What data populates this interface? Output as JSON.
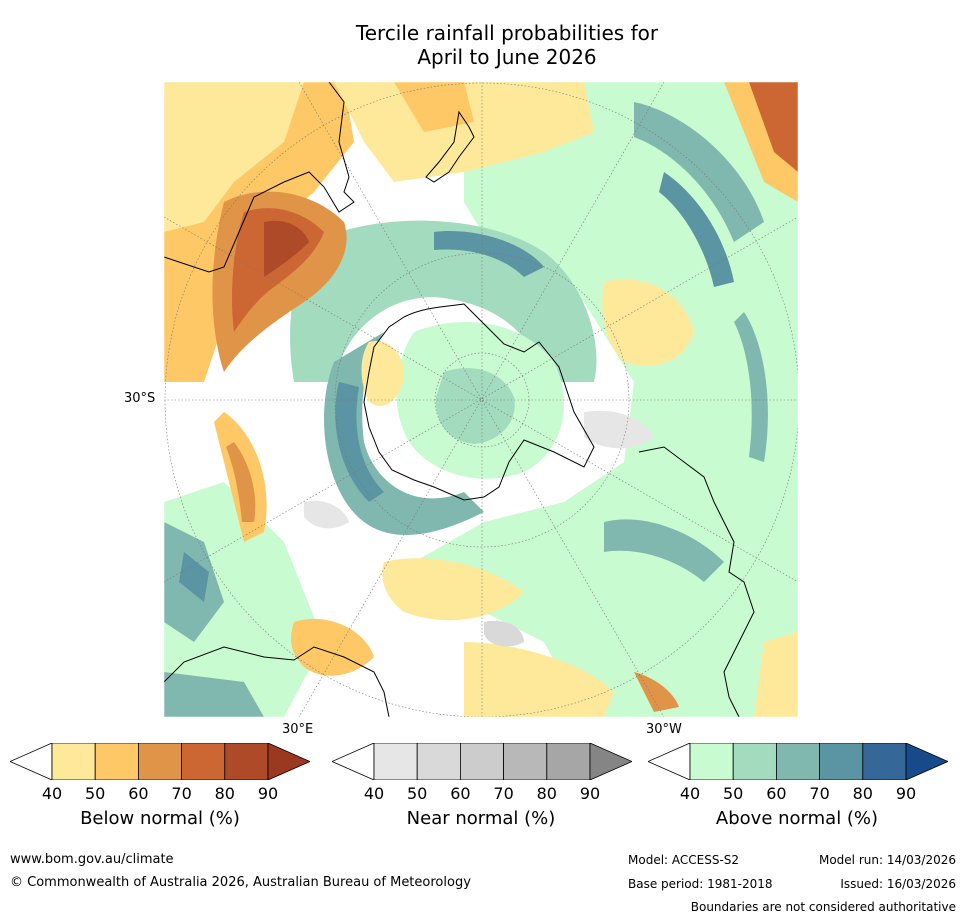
{
  "title": {
    "line1": "Tercile rainfall probabilities for",
    "line2": "April to June 2026"
  },
  "map": {
    "lat_label": "30°S",
    "lon_labels": [
      "30°E",
      "30°W"
    ]
  },
  "colorbars": [
    {
      "name": "below",
      "label": "Below normal (%)",
      "ticks": [
        "40",
        "50",
        "60",
        "70",
        "80",
        "90"
      ],
      "colors": [
        "#ffffff",
        "#fee99a",
        "#fdc865",
        "#e09447",
        "#cc6633",
        "#ae4a28",
        "#9a3920"
      ]
    },
    {
      "name": "near",
      "label": "Near normal (%)",
      "ticks": [
        "40",
        "50",
        "60",
        "70",
        "80",
        "90"
      ],
      "colors": [
        "#ffffff",
        "#e6e6e6",
        "#d9d9d9",
        "#cccccc",
        "#b8b8b8",
        "#a6a6a6",
        "#858585"
      ]
    },
    {
      "name": "above",
      "label": "Above normal (%)",
      "ticks": [
        "40",
        "50",
        "60",
        "70",
        "80",
        "90"
      ],
      "colors": [
        "#ffffff",
        "#c8fbd0",
        "#a3dbbf",
        "#80b8b0",
        "#5b94a3",
        "#356899",
        "#174a8a"
      ]
    }
  ],
  "footer": {
    "url": "www.bom.gov.au/climate",
    "copyright": "© Commonwealth of Australia 2026, Australian Bureau of Meteorology",
    "model": "Model: ACCESS-S2",
    "base_period": "Base period: 1981-2018",
    "model_run": "Model run: 14/03/2026",
    "issued": "Issued: 16/03/2026",
    "disclaimer": "Boundaries are not considered authoritative"
  }
}
